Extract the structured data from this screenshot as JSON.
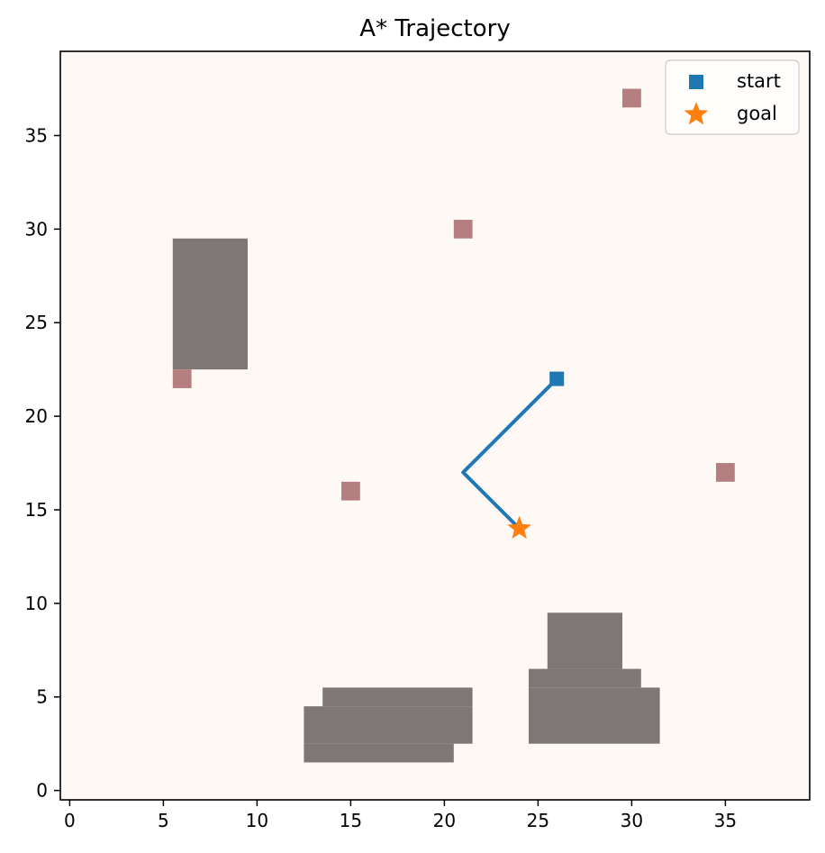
{
  "chart_data": {
    "type": "scatter",
    "title": "A* Trajectory",
    "xlabel": "",
    "ylabel": "",
    "xlim": [
      -0.5,
      39.5
    ],
    "ylim": [
      -0.5,
      39.5
    ],
    "x_ticks": [
      0,
      5,
      10,
      15,
      20,
      25,
      30,
      35
    ],
    "y_ticks": [
      0,
      5,
      10,
      15,
      20,
      25,
      30,
      35
    ],
    "grid": false,
    "legend_position": "upper right",
    "background_color": "#fff9f6",
    "obstacle_color": "#7d7875",
    "marker_color": "#b57f82",
    "obstacles": [
      {
        "x": [
          6,
          9
        ],
        "y": [
          23,
          29
        ]
      },
      {
        "x": [
          13,
          20
        ],
        "y": [
          2,
          2
        ]
      },
      {
        "x": [
          13,
          21
        ],
        "y": [
          3,
          4
        ]
      },
      {
        "x": [
          14,
          21
        ],
        "y": [
          5,
          5
        ]
      },
      {
        "x": [
          25,
          31
        ],
        "y": [
          3,
          5
        ]
      },
      {
        "x": [
          25,
          30
        ],
        "y": [
          6,
          6
        ]
      },
      {
        "x": [
          26,
          29
        ],
        "y": [
          7,
          9
        ]
      }
    ],
    "markers": [
      {
        "x": 30,
        "y": 37
      },
      {
        "x": 21,
        "y": 30
      },
      {
        "x": 6,
        "y": 22
      },
      {
        "x": 15,
        "y": 16
      },
      {
        "x": 35,
        "y": 17
      }
    ],
    "series": [
      {
        "name": "start",
        "type": "scatter",
        "marker": "square",
        "color": "#1f77b4",
        "points": [
          {
            "x": 26,
            "y": 22
          }
        ]
      },
      {
        "name": "goal",
        "type": "scatter",
        "marker": "star",
        "color": "#ff7f0e",
        "points": [
          {
            "x": 24,
            "y": 14
          }
        ]
      }
    ],
    "path": {
      "color": "#1f77b4",
      "points": [
        {
          "x": 26,
          "y": 22
        },
        {
          "x": 21,
          "y": 17
        },
        {
          "x": 24,
          "y": 14
        }
      ]
    }
  }
}
